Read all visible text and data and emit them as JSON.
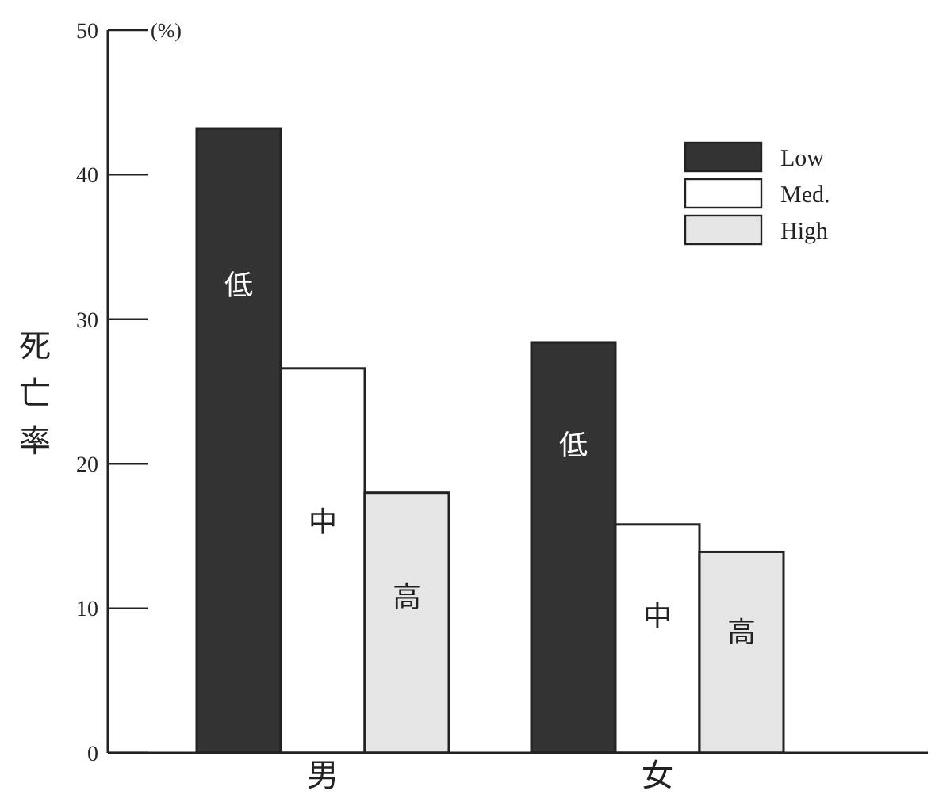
{
  "chart_data": {
    "type": "bar",
    "ylabel": "死亡率",
    "categories": [
      "男",
      "女"
    ],
    "series": [
      {
        "name": "Low",
        "color": "#333333",
        "values": [
          43.2,
          28.4
        ]
      },
      {
        "name": "Med.",
        "color": "#ffffff",
        "values": [
          26.6,
          15.8
        ]
      },
      {
        "name": "High",
        "color": "#e6e6e6",
        "values": [
          18.0,
          13.9
        ]
      }
    ],
    "ylim": [
      0,
      50
    ],
    "yticks": [
      0,
      10,
      20,
      30,
      40,
      50
    ],
    "grid": false,
    "legend": "top right",
    "annotations": [
      "(%)",
      "低",
      "中",
      "高",
      "低",
      "中",
      "高"
    ]
  }
}
